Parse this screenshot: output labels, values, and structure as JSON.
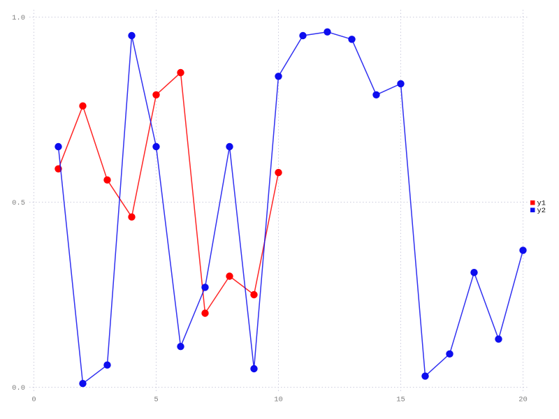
{
  "chart_data": {
    "type": "line",
    "title": "",
    "xlabel": "",
    "ylabel": "",
    "grid": true,
    "legend_position": "right-middle",
    "xlim": [
      0,
      21.3
    ],
    "ylim": [
      0,
      1.0
    ],
    "xticks": [
      0,
      5,
      10,
      15,
      20
    ],
    "xtick_labels": [
      "0",
      "5",
      "10",
      "15",
      "20"
    ],
    "yticks": [
      0,
      0.5,
      1.0
    ],
    "ytick_labels": [
      "0.0",
      "0.5",
      "1.0"
    ],
    "marker": "circle",
    "series": [
      {
        "name": "y1",
        "color": "#ff0000",
        "x": [
          1,
          2,
          3,
          4,
          5,
          6,
          7,
          8,
          9,
          10
        ],
        "values": [
          0.59,
          0.76,
          0.56,
          0.46,
          0.79,
          0.85,
          0.2,
          0.3,
          0.25,
          0.58
        ]
      },
      {
        "name": "y2",
        "color": "#0d0dee",
        "x": [
          1,
          2,
          3,
          4,
          5,
          6,
          7,
          8,
          9,
          10,
          11,
          12,
          13,
          14,
          15,
          16,
          17,
          18,
          19,
          20
        ],
        "values": [
          0.65,
          0.01,
          0.06,
          0.95,
          0.65,
          0.11,
          0.27,
          0.65,
          0.05,
          0.84,
          0.95,
          0.96,
          0.94,
          0.79,
          0.82,
          0.03,
          0.09,
          0.31,
          0.13,
          0.37
        ]
      }
    ]
  },
  "style": {
    "background": "#ffffff",
    "grid_color": "#ccccdd",
    "tick_label_color": "#808080",
    "legend_text_color": "#111111"
  }
}
